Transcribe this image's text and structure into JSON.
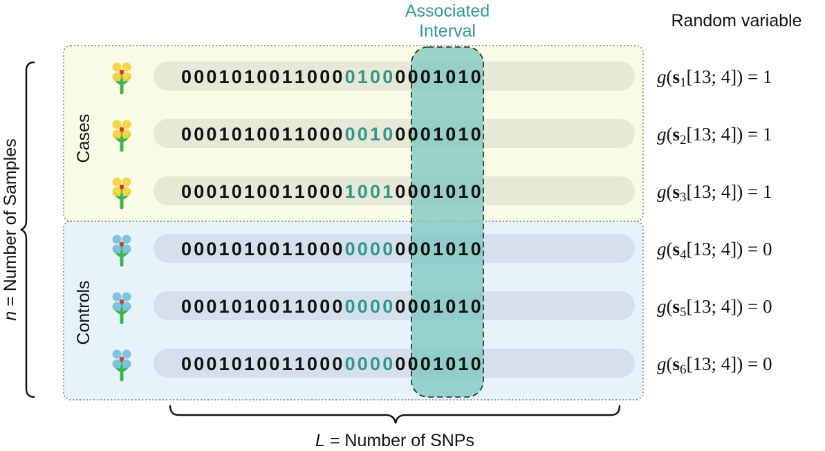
{
  "header": {
    "interval_title_line1": "Associated",
    "interval_title_line2": "Interval",
    "random_variable_label": "Random variable"
  },
  "groups": {
    "cases_label": "Cases",
    "controls_label": "Controls"
  },
  "axes": {
    "n_symbol": "n",
    "n_text": " = Number of Samples",
    "l_symbol": "L",
    "l_text": " = Number of SNPs"
  },
  "interval": {
    "start_index": 13,
    "length": 4
  },
  "colors": {
    "cases_bg": "#fafbe6",
    "controls_bg": "#e7f3fb",
    "interval_fill": "#7ec8c0",
    "interval_digits": "#2f9a8c",
    "case_flower": "#f3d23a",
    "control_flower": "#78c0e0",
    "stem": "#3cb44a"
  },
  "samples": [
    {
      "group": "case",
      "pre": "0001010011000",
      "interval": "0100",
      "post": "0001010",
      "formula": {
        "g": "g",
        "s": "s",
        "index": "1",
        "args": "[13; 4]) = 1"
      }
    },
    {
      "group": "case",
      "pre": "0001010011000",
      "interval": "0010",
      "post": "0001010",
      "formula": {
        "g": "g",
        "s": "s",
        "index": "2",
        "args": "[13; 4]) = 1"
      }
    },
    {
      "group": "case",
      "pre": "0001010011000",
      "interval": "1001",
      "post": "0001010",
      "formula": {
        "g": "g",
        "s": "s",
        "index": "3",
        "args": "[13; 4]) = 1"
      }
    },
    {
      "group": "control",
      "pre": "0001010011000",
      "interval": "0000",
      "post": "0001010",
      "formula": {
        "g": "g",
        "s": "s",
        "index": "4",
        "args": "[13; 4]) = 0"
      }
    },
    {
      "group": "control",
      "pre": "0001010011000",
      "interval": "0000",
      "post": "0001010",
      "formula": {
        "g": "g",
        "s": "s",
        "index": "5",
        "args": "[13; 4]) = 0"
      }
    },
    {
      "group": "control",
      "pre": "0001010011000",
      "interval": "0000",
      "post": "0001010",
      "formula": {
        "g": "g",
        "s": "s",
        "index": "6",
        "args": "[13; 4]) = 0"
      }
    }
  ]
}
